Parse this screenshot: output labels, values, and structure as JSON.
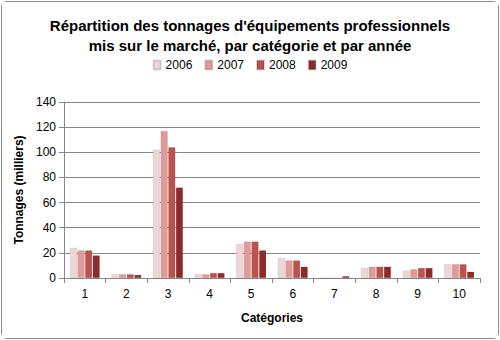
{
  "chart_data": {
    "type": "bar",
    "title": "Répartition des tonnages d'équipements professionnels\nmis sur le marché, par catégorie et par année",
    "x_label": "Catégories",
    "y_label": "Tonnages (milliers)",
    "categories": [
      "1",
      "2",
      "3",
      "4",
      "5",
      "6",
      "7",
      "8",
      "9",
      "10"
    ],
    "series": [
      {
        "name": "2006",
        "color": "#ecd6d6",
        "values": [
          24,
          3,
          102,
          3,
          27,
          16,
          0,
          8,
          6,
          11
        ]
      },
      {
        "name": "2007",
        "color": "#e29a98",
        "values": [
          22,
          3,
          117,
          3,
          29,
          14,
          0,
          9,
          7,
          11
        ]
      },
      {
        "name": "2008",
        "color": "#c0504d",
        "values": [
          22,
          3,
          104,
          4,
          29,
          14,
          0,
          9,
          8,
          11
        ]
      },
      {
        "name": "2009",
        "color": "#8e2a28",
        "values": [
          18,
          2.5,
          72,
          4,
          22,
          9,
          1.5,
          9,
          8,
          5
        ]
      }
    ],
    "ylim": [
      0,
      140
    ],
    "yticks": [
      0,
      20,
      40,
      60,
      80,
      100,
      120,
      140
    ],
    "grid": true,
    "legend": "top"
  }
}
